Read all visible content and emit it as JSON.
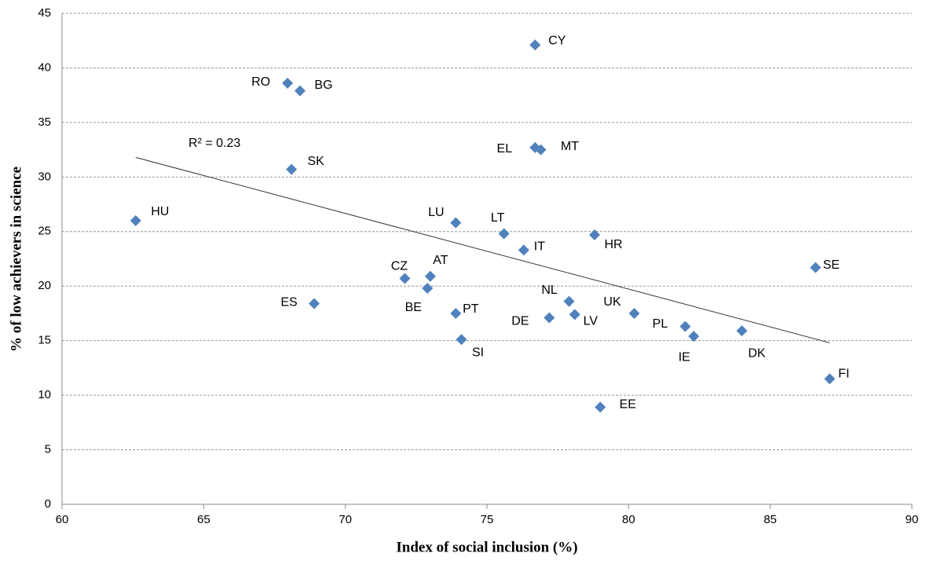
{
  "chart_data": {
    "type": "scatter",
    "x_label": "Index of social inclusion (%)",
    "y_label": "% of low achievers in science",
    "annotation": "R² = 0.23",
    "categories": [
      "HU",
      "RO",
      "BG",
      "SK",
      "ES",
      "CZ",
      "AT",
      "BE",
      "LU",
      "PT",
      "SI",
      "LT",
      "IT",
      "CY",
      "EL",
      "MT",
      "DE",
      "NL",
      "LV",
      "HR",
      "EE",
      "UK",
      "PL",
      "IE",
      "DK",
      "SE",
      "FI"
    ],
    "x": [
      62.6,
      67.96,
      68.4,
      68.1,
      68.9,
      72.1,
      73.0,
      72.9,
      73.9,
      73.9,
      74.1,
      75.6,
      76.3,
      76.7,
      76.7,
      76.9,
      77.2,
      77.9,
      78.1,
      78.8,
      79.0,
      80.2,
      82.0,
      82.3,
      84.0,
      86.6,
      87.1
    ],
    "values": [
      26.0,
      38.6,
      37.9,
      30.7,
      18.4,
      20.7,
      20.9,
      19.8,
      25.8,
      17.5,
      15.1,
      24.8,
      23.3,
      42.1,
      32.7,
      32.5,
      17.1,
      18.6,
      17.4,
      24.7,
      8.9,
      17.5,
      16.3,
      15.4,
      15.9,
      21.7,
      11.5
    ],
    "color": "#4f81bd",
    "trendline": {
      "x": [
        62.6,
        87.1
      ],
      "y": [
        31.8,
        14.8
      ]
    },
    "xlim": [
      60,
      90
    ],
    "xticks": [
      60,
      65,
      70,
      75,
      80,
      85,
      90
    ],
    "ylim": [
      0,
      45
    ],
    "yticks": [
      0,
      5,
      10,
      15,
      20,
      25,
      30,
      35,
      40,
      45
    ],
    "grid": true
  }
}
